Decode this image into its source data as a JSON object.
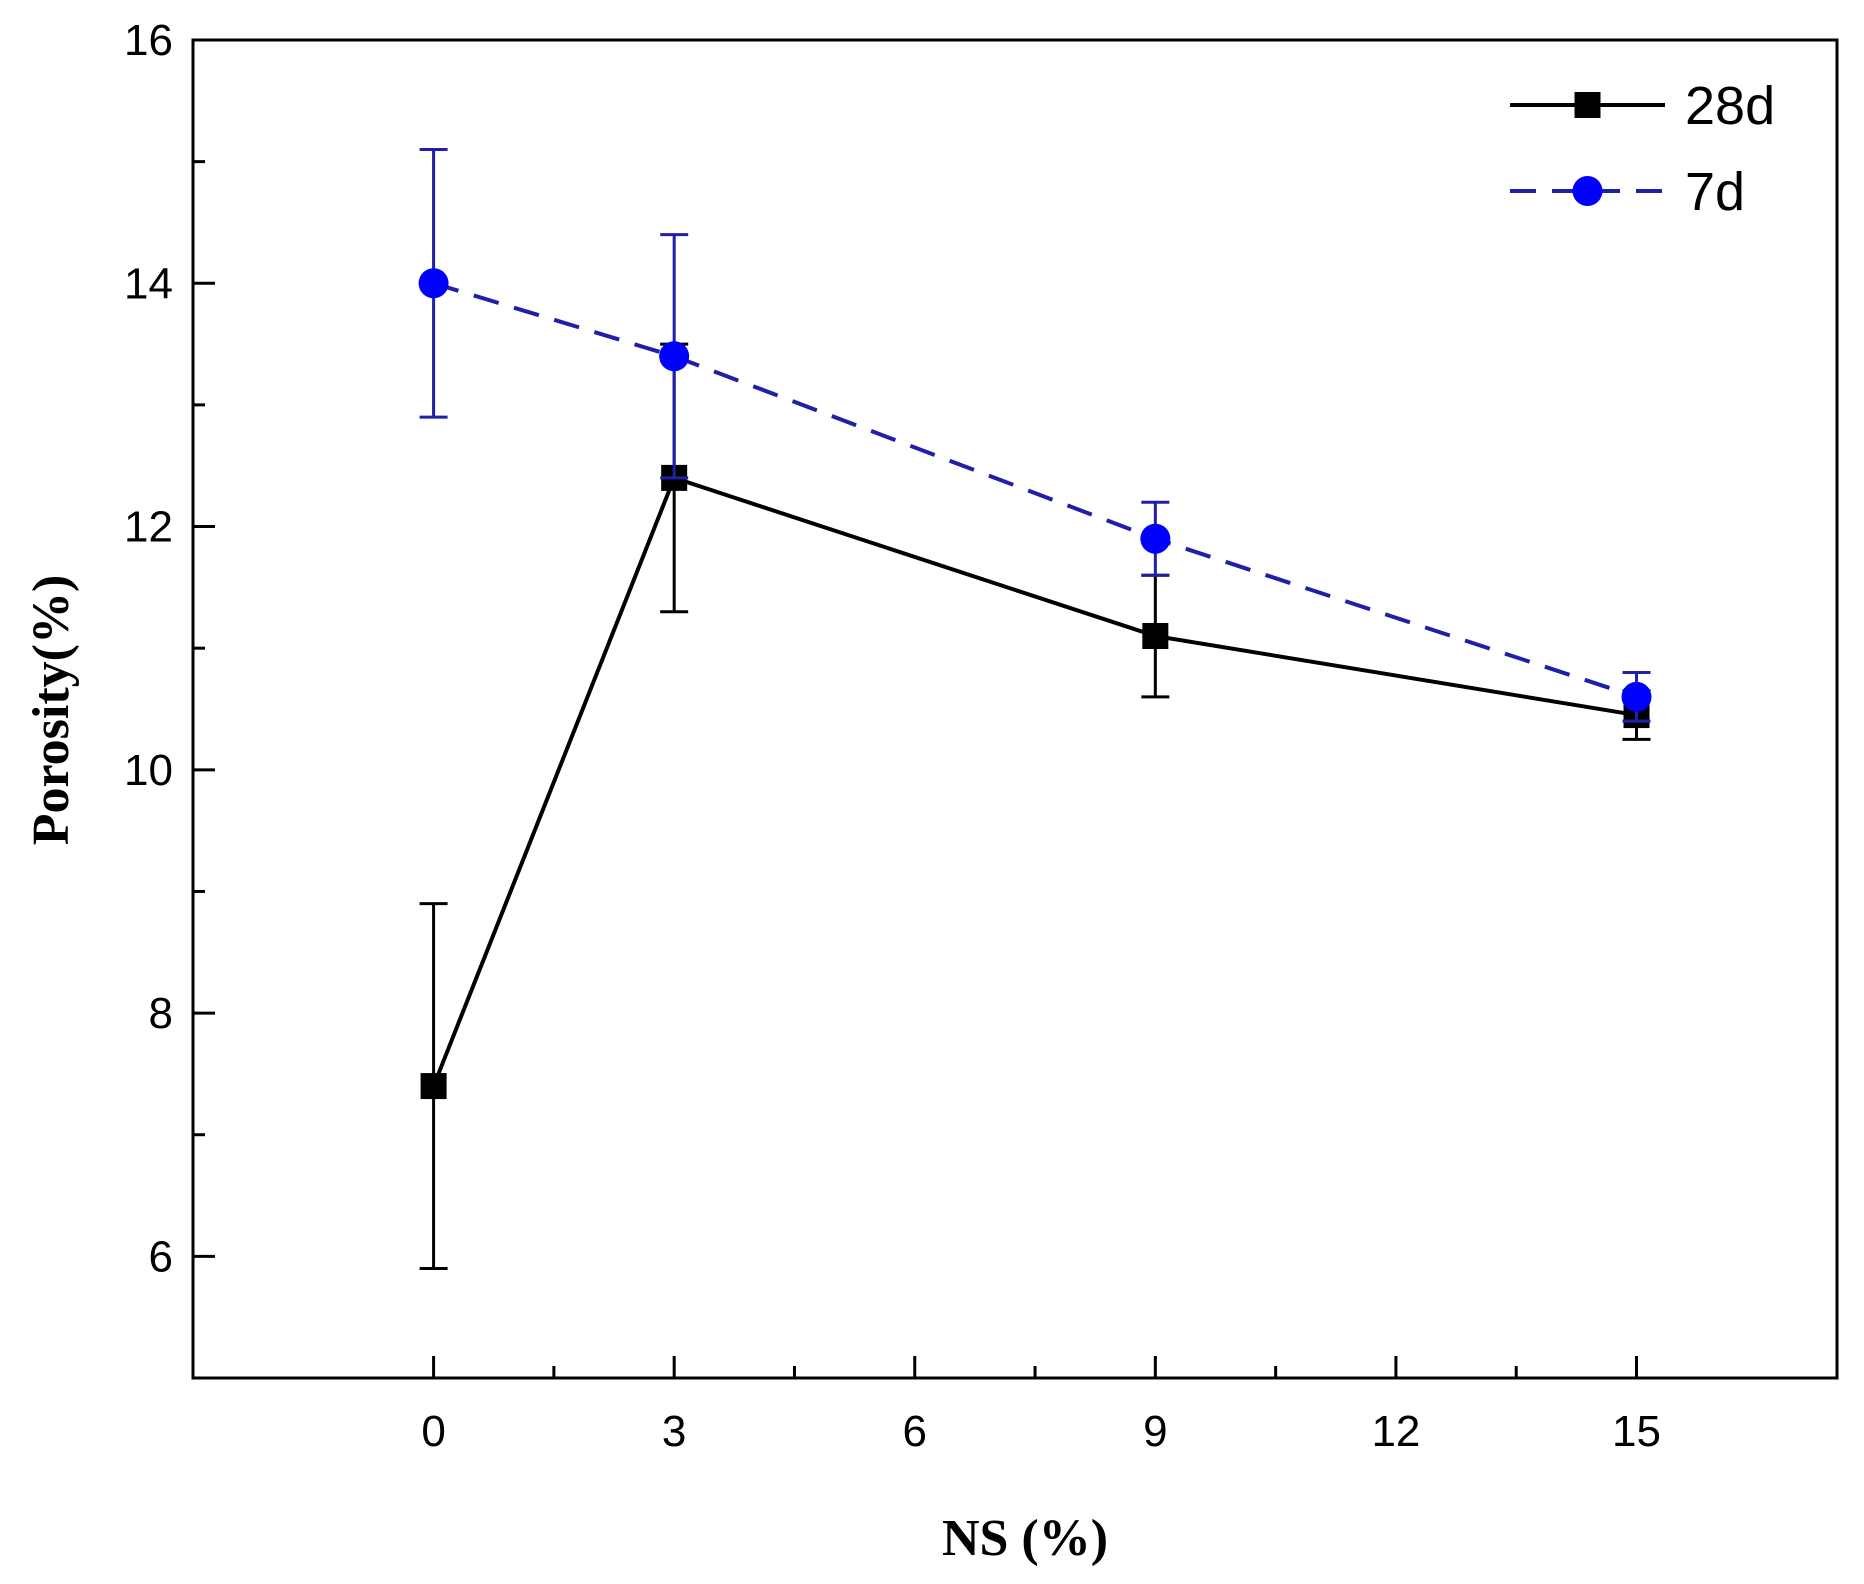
{
  "chart_data": {
    "type": "line",
    "title": "",
    "xlabel": "NS (%)",
    "ylabel": "Porosity(%)",
    "xlim": [
      -3,
      17.5
    ],
    "ylim": [
      5,
      16
    ],
    "xticks": [
      0,
      3,
      6,
      9,
      12,
      15
    ],
    "yticks": [
      6,
      8,
      10,
      12,
      14,
      16
    ],
    "x": [
      0,
      3,
      9,
      15
    ],
    "legend_position": "top-right",
    "series": [
      {
        "name": "28d",
        "color": "#000000",
        "line_style": "solid",
        "marker": "square",
        "values": [
          7.4,
          12.4,
          11.1,
          10.45
        ],
        "error": [
          1.5,
          1.1,
          0.5,
          0.2
        ]
      },
      {
        "name": "7d",
        "color": "#0000ff",
        "error_color": "#1f1fa8",
        "line_color": "#1f1fa8",
        "line_style": "dashed",
        "marker": "circle",
        "values": [
          14.0,
          13.4,
          11.9,
          10.6
        ],
        "error": [
          1.1,
          1.0,
          0.3,
          0.2
        ]
      }
    ]
  }
}
